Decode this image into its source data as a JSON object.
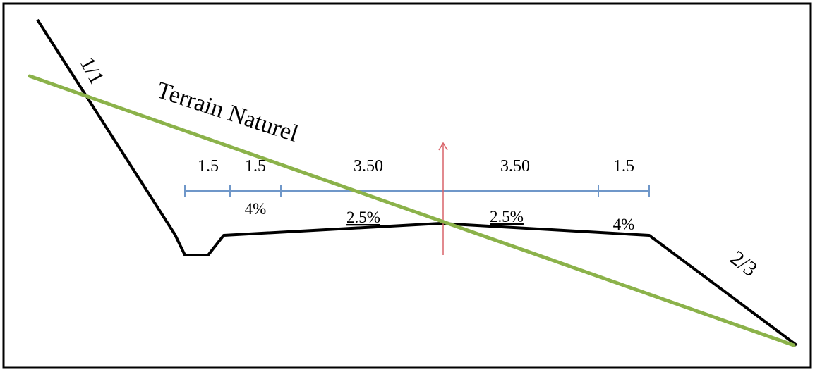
{
  "labels": {
    "terrain": "Terrain Naturel",
    "left_slope": "1/1",
    "right_slope": "2/3"
  },
  "dimensions": [
    "1.5",
    "1.5",
    "3.50",
    "3.50",
    "1.5"
  ],
  "slopes": {
    "left_ditch": "4%",
    "left_lane": "2.5%",
    "right_lane": "2.5%",
    "right_shoulder": "4%"
  },
  "colors": {
    "profile": "#000000",
    "terrain_line": "#8bb24a",
    "dimension_line": "#6f97c9",
    "axis": "#d9646a",
    "frame": "#000000"
  }
}
